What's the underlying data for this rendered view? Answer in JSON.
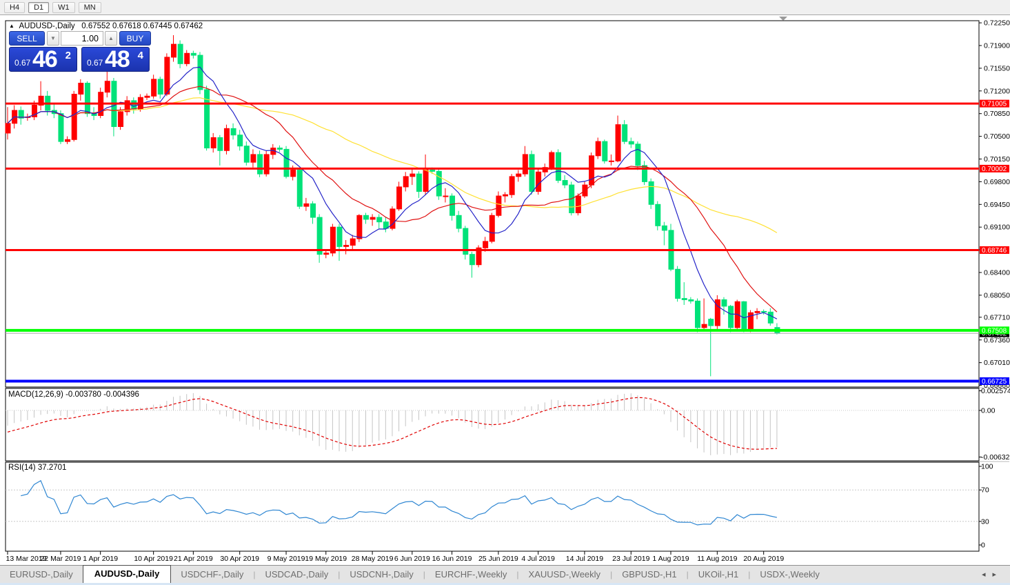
{
  "toolbar": {
    "timeframes": [
      "H4",
      "D1",
      "W1",
      "MN"
    ],
    "active_timeframe": "D1"
  },
  "chart_header": {
    "symbol": "AUDUSD-,Daily",
    "ohlc": "0.67552 0.67618 0.67445 0.67462"
  },
  "trade_panel": {
    "sell_label": "SELL",
    "buy_label": "BUY",
    "volume": "1.00",
    "bid_big": "0.67",
    "bid_main": "46",
    "bid_sup": "2",
    "ask_big": "0.67",
    "ask_main": "48",
    "ask_sup": "4"
  },
  "chart_data": {
    "type": "candlestick",
    "symbol": "AUDUSD-",
    "timeframe": "Daily",
    "colors": {
      "bull": "#FF0000",
      "bear": "#00E279",
      "ma_fast": "#2323C8",
      "ma_mid": "#E01010",
      "ma_slow": "#FFE132",
      "macd_hist": "#C4C4C4",
      "macd_signal": "#E00000",
      "rsi": "#2E86D2",
      "grid_dotted": "#C8C8C8",
      "bid_line": "#A8A8A8",
      "bid_badge": "#000000"
    },
    "y_axis_labels": [
      "0.72250",
      "0.71900",
      "0.71550",
      "0.71200",
      "0.70850",
      "0.70500",
      "0.70150",
      "0.69800",
      "0.69450",
      "0.69100",
      "0.68750",
      "0.68400",
      "0.68050",
      "0.67710",
      "0.67360",
      "0.67010",
      "0.66660"
    ],
    "hlines": [
      {
        "price": 0.71005,
        "label": "0.71005",
        "color": "#FF0000",
        "width": 3
      },
      {
        "price": 0.70002,
        "label": "0.70002",
        "color": "#FF0000",
        "width": 3
      },
      {
        "price": 0.68746,
        "label": "0.68746",
        "color": "#FF0000",
        "width": 3
      },
      {
        "price": 0.67508,
        "label": "0.67508",
        "color": "#00FF00",
        "width": 4
      },
      {
        "price": 0.66725,
        "label": "0.66725",
        "color": "#0000FF",
        "width": 4
      }
    ],
    "bid": {
      "price": 0.67462,
      "label": "0.67462"
    },
    "moving_averages": [
      {
        "name": "fast",
        "period": 8,
        "color": "#2323C8"
      },
      {
        "name": "medium",
        "period": 17,
        "color": "#E01010"
      },
      {
        "name": "slow",
        "period": 40,
        "color": "#FFE132"
      }
    ],
    "x_ticks": [
      {
        "label": "13 Mar 2019",
        "index": 0
      },
      {
        "label": "22 Mar 2019",
        "index": 8
      },
      {
        "label": "1 Apr 2019",
        "index": 14
      },
      {
        "label": "10 Apr 2019",
        "index": 22
      },
      {
        "label": "21 Apr 2019",
        "index": 28
      },
      {
        "label": "30 Apr 2019",
        "index": 35
      },
      {
        "label": "9 May 2019",
        "index": 42
      },
      {
        "label": "19 May 2019",
        "index": 48
      },
      {
        "label": "28 May 2019",
        "index": 55
      },
      {
        "label": "6 Jun 2019",
        "index": 61
      },
      {
        "label": "16 Jun 2019",
        "index": 67
      },
      {
        "label": "25 Jun 2019",
        "index": 74
      },
      {
        "label": "4 Jul 2019",
        "index": 80
      },
      {
        "label": "14 Jul 2019",
        "index": 87
      },
      {
        "label": "23 Jul 2019",
        "index": 94
      },
      {
        "label": "1 Aug 2019",
        "index": 100
      },
      {
        "label": "11 Aug 2019",
        "index": 107
      },
      {
        "label": "20 Aug 2019",
        "index": 114
      }
    ],
    "candles": [
      [
        0.7055,
        0.7095,
        0.7045,
        0.707
      ],
      [
        0.707,
        0.7098,
        0.7062,
        0.709
      ],
      [
        0.709,
        0.7096,
        0.7068,
        0.7078
      ],
      [
        0.7079,
        0.7085,
        0.7074,
        0.708
      ],
      [
        0.708,
        0.7105,
        0.7075,
        0.7098
      ],
      [
        0.7098,
        0.7135,
        0.709,
        0.7112
      ],
      [
        0.7112,
        0.712,
        0.7082,
        0.709
      ],
      [
        0.709,
        0.71,
        0.7078,
        0.7085
      ],
      [
        0.7085,
        0.709,
        0.7038,
        0.7042
      ],
      [
        0.7042,
        0.705,
        0.7038,
        0.7045
      ],
      [
        0.7045,
        0.712,
        0.7042,
        0.7115
      ],
      [
        0.7115,
        0.7138,
        0.7105,
        0.7132
      ],
      [
        0.7132,
        0.7135,
        0.708,
        0.7085
      ],
      [
        0.7085,
        0.7095,
        0.7075,
        0.7082
      ],
      [
        0.7082,
        0.7125,
        0.7078,
        0.7118
      ],
      [
        0.7118,
        0.715,
        0.711,
        0.7135
      ],
      [
        0.7135,
        0.714,
        0.705,
        0.7065
      ],
      [
        0.7065,
        0.7095,
        0.706,
        0.7088
      ],
      [
        0.7088,
        0.7112,
        0.7082,
        0.7105
      ],
      [
        0.7105,
        0.711,
        0.7085,
        0.7092
      ],
      [
        0.7092,
        0.7115,
        0.7088,
        0.711
      ],
      [
        0.711,
        0.7116,
        0.7106,
        0.7112
      ],
      [
        0.7112,
        0.7145,
        0.7108,
        0.7138
      ],
      [
        0.7138,
        0.7142,
        0.7108,
        0.7115
      ],
      [
        0.7115,
        0.7178,
        0.7112,
        0.7172
      ],
      [
        0.7172,
        0.7206,
        0.7165,
        0.7192
      ],
      [
        0.7192,
        0.7198,
        0.7155,
        0.7162
      ],
      [
        0.7162,
        0.7183,
        0.7158,
        0.7178
      ],
      [
        0.7178,
        0.7182,
        0.717,
        0.7175
      ],
      [
        0.7175,
        0.718,
        0.7115,
        0.7122
      ],
      [
        0.7122,
        0.7128,
        0.7028,
        0.7032
      ],
      [
        0.7032,
        0.7055,
        0.7025,
        0.7048
      ],
      [
        0.7048,
        0.7052,
        0.7005,
        0.7028
      ],
      [
        0.7028,
        0.7068,
        0.7022,
        0.7062
      ],
      [
        0.7062,
        0.707,
        0.7045,
        0.7052
      ],
      [
        0.7052,
        0.706,
        0.7028,
        0.7035
      ],
      [
        0.7035,
        0.7042,
        0.7005,
        0.701
      ],
      [
        0.701,
        0.703,
        0.7002,
        0.7022
      ],
      [
        0.7022,
        0.7028,
        0.6987,
        0.6992
      ],
      [
        0.6992,
        0.7028,
        0.6988,
        0.7022
      ],
      [
        0.7022,
        0.7038,
        0.7015,
        0.7032
      ],
      [
        0.7032,
        0.7036,
        0.7026,
        0.703
      ],
      [
        0.703,
        0.7035,
        0.6985,
        0.6988
      ],
      [
        0.6988,
        0.7005,
        0.6982,
        0.6998
      ],
      [
        0.6998,
        0.7,
        0.6938,
        0.6942
      ],
      [
        0.6942,
        0.6955,
        0.6935,
        0.6946
      ],
      [
        0.6946,
        0.695,
        0.6915,
        0.6925
      ],
      [
        0.6925,
        0.693,
        0.6855,
        0.6868
      ],
      [
        0.6868,
        0.6875,
        0.6862,
        0.687
      ],
      [
        0.687,
        0.6915,
        0.6865,
        0.691
      ],
      [
        0.691,
        0.6915,
        0.6858,
        0.688
      ],
      [
        0.688,
        0.689,
        0.6868,
        0.6882
      ],
      [
        0.6882,
        0.6898,
        0.6875,
        0.6892
      ],
      [
        0.6892,
        0.693,
        0.6887,
        0.6928
      ],
      [
        0.6928,
        0.6932,
        0.6915,
        0.6922
      ],
      [
        0.6922,
        0.693,
        0.6912,
        0.6925
      ],
      [
        0.6925,
        0.693,
        0.6908,
        0.6918
      ],
      [
        0.6918,
        0.6925,
        0.6902,
        0.6908
      ],
      [
        0.6908,
        0.6942,
        0.6905,
        0.6938
      ],
      [
        0.6938,
        0.698,
        0.6935,
        0.6972
      ],
      [
        0.6972,
        0.6995,
        0.6965,
        0.6988
      ],
      [
        0.6988,
        0.7,
        0.6975,
        0.6992
      ],
      [
        0.6992,
        0.6996,
        0.6955,
        0.6965
      ],
      [
        0.6965,
        0.7022,
        0.696,
        0.6998
      ],
      [
        0.6998,
        0.7002,
        0.6992,
        0.6996
      ],
      [
        0.6996,
        0.7,
        0.6952,
        0.6958
      ],
      [
        0.6958,
        0.697,
        0.6948,
        0.6958
      ],
      [
        0.6958,
        0.6962,
        0.692,
        0.6928
      ],
      [
        0.6928,
        0.6935,
        0.6902,
        0.6908
      ],
      [
        0.6908,
        0.6912,
        0.686,
        0.6868
      ],
      [
        0.6868,
        0.6872,
        0.6832,
        0.6852
      ],
      [
        0.6852,
        0.6882,
        0.6848,
        0.6878
      ],
      [
        0.6878,
        0.6895,
        0.6872,
        0.6888
      ],
      [
        0.6888,
        0.6932,
        0.6885,
        0.6928
      ],
      [
        0.6928,
        0.6965,
        0.6925,
        0.6958
      ],
      [
        0.6958,
        0.6964,
        0.6948,
        0.696
      ],
      [
        0.696,
        0.6992,
        0.6955,
        0.6988
      ],
      [
        0.6988,
        0.6998,
        0.698,
        0.6992
      ],
      [
        0.6992,
        0.7035,
        0.6988,
        0.7022
      ],
      [
        0.7022,
        0.7028,
        0.696,
        0.6965
      ],
      [
        0.6965,
        0.7,
        0.696,
        0.6995
      ],
      [
        0.6995,
        0.7008,
        0.6988,
        0.7002
      ],
      [
        0.7002,
        0.7028,
        0.6998,
        0.7025
      ],
      [
        0.7025,
        0.703,
        0.6978,
        0.6982
      ],
      [
        0.6982,
        0.699,
        0.697,
        0.6975
      ],
      [
        0.6975,
        0.698,
        0.6928,
        0.6932
      ],
      [
        0.6932,
        0.6962,
        0.6928,
        0.6958
      ],
      [
        0.6958,
        0.698,
        0.6955,
        0.6975
      ],
      [
        0.6975,
        0.7025,
        0.697,
        0.702
      ],
      [
        0.702,
        0.7048,
        0.7015,
        0.7042
      ],
      [
        0.7042,
        0.7045,
        0.7008,
        0.7012
      ],
      [
        0.7012,
        0.7022,
        0.7005,
        0.7012
      ],
      [
        0.7012,
        0.7082,
        0.701,
        0.7068
      ],
      [
        0.7068,
        0.7075,
        0.7038,
        0.7042
      ],
      [
        0.7042,
        0.7048,
        0.7032,
        0.7038
      ],
      [
        0.7038,
        0.7042,
        0.6998,
        0.7005
      ],
      [
        0.7005,
        0.7012,
        0.6975,
        0.698
      ],
      [
        0.698,
        0.6985,
        0.6938,
        0.6945
      ],
      [
        0.6945,
        0.695,
        0.6905,
        0.6912
      ],
      [
        0.6912,
        0.6918,
        0.6882,
        0.6905
      ],
      [
        0.6905,
        0.6915,
        0.6842,
        0.6845
      ],
      [
        0.6845,
        0.685,
        0.6795,
        0.68
      ],
      [
        0.68,
        0.6825,
        0.679,
        0.6798
      ],
      [
        0.6798,
        0.6802,
        0.6792,
        0.6796
      ],
      [
        0.6796,
        0.68,
        0.6748,
        0.6755
      ],
      [
        0.6755,
        0.68,
        0.675,
        0.676
      ],
      [
        0.6768,
        0.677,
        0.668,
        0.6758
      ],
      [
        0.6758,
        0.6805,
        0.6752,
        0.6798
      ],
      [
        0.6798,
        0.6802,
        0.6775,
        0.6788
      ],
      [
        0.6788,
        0.679,
        0.6748,
        0.6755
      ],
      [
        0.6755,
        0.6798,
        0.675,
        0.6795
      ],
      [
        0.6795,
        0.6796,
        0.6748,
        0.6752
      ],
      [
        0.6752,
        0.6782,
        0.6748,
        0.6778
      ],
      [
        0.6778,
        0.6785,
        0.6768,
        0.678
      ],
      [
        0.678,
        0.6783,
        0.6775,
        0.6779
      ],
      [
        0.6779,
        0.6785,
        0.6758,
        0.6762
      ],
      [
        0.67552,
        0.67618,
        0.67445,
        0.67462
      ]
    ],
    "macd": {
      "label": "MACD(12,26,9)",
      "values_text": "-0.003780 -0.004396",
      "params": [
        12,
        26,
        9
      ],
      "axis": [
        "0.002574",
        "0.00",
        "-0.006326"
      ],
      "max": 0.002574,
      "min": -0.006326
    },
    "rsi": {
      "label": "RSI(14)",
      "value_text": "37.2701",
      "period": 14,
      "axis": [
        "100",
        "70",
        "30",
        "0"
      ],
      "levels": [
        70,
        30
      ]
    }
  },
  "tabs": {
    "items": [
      "EURUSD-,Daily",
      "AUDUSD-,Daily",
      "USDCHF-,Daily",
      "USDCAD-,Daily",
      "USDCNH-,Daily",
      "EURCHF-,Weekly",
      "XAUUSD-,Weekly",
      "GBPUSD-,H1",
      "UKOil-,H1",
      "USDX-,Weekly"
    ],
    "active": "AUDUSD-,Daily"
  }
}
